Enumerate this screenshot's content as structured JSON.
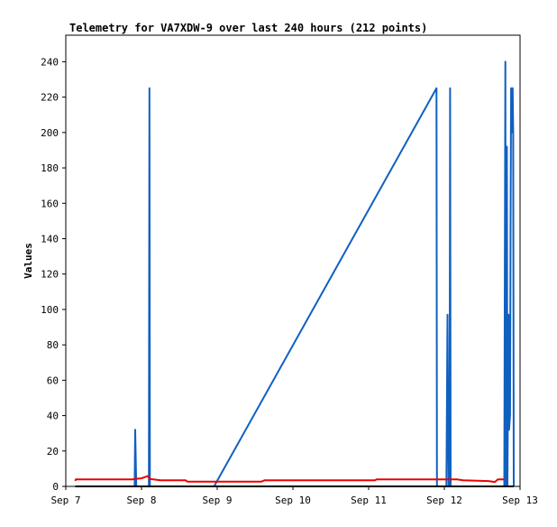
{
  "chart_data": {
    "type": "line",
    "title": "Telemetry for VA7XDW-9 over last 240 hours (212 points)",
    "xlabel": "",
    "ylabel": "Values",
    "x_ticks": [
      "Sep 7",
      "Sep 8",
      "Sep 9",
      "Sep 10",
      "Sep 11",
      "Sep 12",
      "Sep 13"
    ],
    "xlim": [
      "Sep 7 00:00",
      "Sep 13 00:00"
    ],
    "ylim": [
      0,
      255
    ],
    "y_ticks": [
      0,
      20,
      40,
      60,
      80,
      100,
      120,
      140,
      160,
      180,
      200,
      220,
      240
    ],
    "grid": false,
    "legend": "none",
    "series": [
      {
        "color": "#1060c0",
        "points": [
          {
            "x": "Sep 7 21:50",
            "y": 0
          },
          {
            "x": "Sep 7 22:00",
            "y": 32
          },
          {
            "x": "Sep 7 22:10",
            "y": 16
          },
          {
            "x": "Sep 7 22:20",
            "y": 0
          },
          {
            "x": "Sep 8 02:20",
            "y": 0
          },
          {
            "x": "Sep 8 02:30",
            "y": 225
          },
          {
            "x": "Sep 8 02:40",
            "y": 0
          },
          {
            "x": "Sep 8 23:00",
            "y": 0
          },
          {
            "x": "Sep 11 21:30",
            "y": 225
          },
          {
            "x": "Sep 11 21:40",
            "y": 0
          },
          {
            "x": "Sep 12 00:40",
            "y": 0
          },
          {
            "x": "Sep 12 00:50",
            "y": 48
          },
          {
            "x": "Sep 12 01:00",
            "y": 97
          },
          {
            "x": "Sep 12 01:10",
            "y": 48
          },
          {
            "x": "Sep 12 01:20",
            "y": 0
          },
          {
            "x": "Sep 12 01:40",
            "y": 0
          },
          {
            "x": "Sep 12 01:50",
            "y": 225
          },
          {
            "x": "Sep 12 02:00",
            "y": 0
          },
          {
            "x": "Sep 12 19:00",
            "y": 0
          },
          {
            "x": "Sep 12 19:10",
            "y": 120
          },
          {
            "x": "Sep 12 19:20",
            "y": 240
          },
          {
            "x": "Sep 12 19:30",
            "y": 0
          },
          {
            "x": "Sep 12 19:50",
            "y": 192
          },
          {
            "x": "Sep 12 20:00",
            "y": 0
          },
          {
            "x": "Sep 12 20:20",
            "y": 97
          },
          {
            "x": "Sep 12 20:30",
            "y": 32
          },
          {
            "x": "Sep 12 20:50",
            "y": 40
          },
          {
            "x": "Sep 12 21:00",
            "y": 152
          },
          {
            "x": "Sep 12 21:10",
            "y": 225
          },
          {
            "x": "Sep 12 21:20",
            "y": 200
          },
          {
            "x": "Sep 12 21:30",
            "y": 225
          },
          {
            "x": "Sep 12 21:40",
            "y": 225
          },
          {
            "x": "Sep 12 21:50",
            "y": 200
          },
          {
            "x": "Sep 12 22:00",
            "y": 0
          }
        ]
      },
      {
        "color": "#ee0000",
        "points": [
          {
            "x": "Sep 7 03:00",
            "y": 3.1
          },
          {
            "x": "Sep 7 03:10",
            "y": 4.0
          },
          {
            "x": "Sep 7 21:00",
            "y": 4.0
          },
          {
            "x": "Sep 8 00:00",
            "y": 4.6
          },
          {
            "x": "Sep 8 02:00",
            "y": 5.8
          },
          {
            "x": "Sep 8 02:40",
            "y": 4.2
          },
          {
            "x": "Sep 8 06:00",
            "y": 3.4
          },
          {
            "x": "Sep 8 14:00",
            "y": 3.4
          },
          {
            "x": "Sep 8 14:30",
            "y": 2.7
          },
          {
            "x": "Sep 9 14:00",
            "y": 2.7
          },
          {
            "x": "Sep 9 15:00",
            "y": 3.4
          },
          {
            "x": "Sep 11 02:00",
            "y": 3.4
          },
          {
            "x": "Sep 11 02:30",
            "y": 4.0
          },
          {
            "x": "Sep 12 04:00",
            "y": 4.0
          },
          {
            "x": "Sep 12 06:00",
            "y": 3.4
          },
          {
            "x": "Sep 12 14:00",
            "y": 3.0
          },
          {
            "x": "Sep 12 16:00",
            "y": 2.5
          },
          {
            "x": "Sep 12 17:00",
            "y": 4.0
          },
          {
            "x": "Sep 12 19:00",
            "y": 4.0
          }
        ]
      },
      {
        "color": "#000000",
        "points": [
          {
            "x": "Sep 7 03:00",
            "y": 0
          },
          {
            "x": "Sep 12 22:00",
            "y": 0
          }
        ]
      }
    ]
  }
}
